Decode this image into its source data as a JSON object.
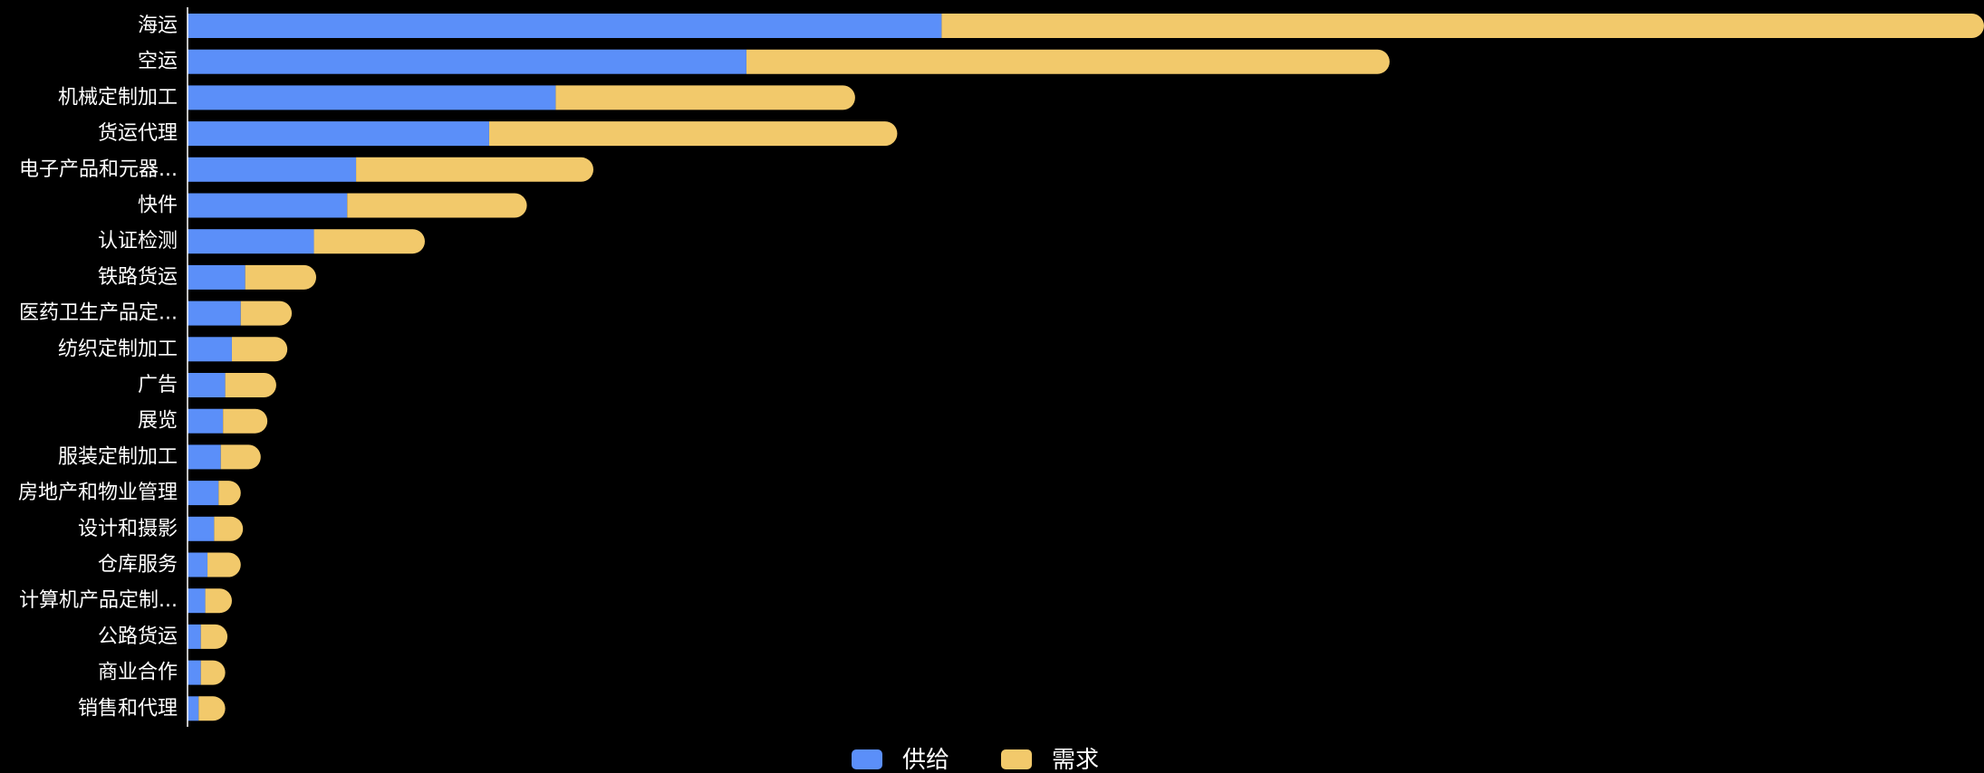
{
  "chart_data": {
    "type": "bar",
    "orientation": "horizontal",
    "stacked": true,
    "categories": [
      "海运",
      "空运",
      "机械定制加工",
      "货运代理",
      "电子产品和元器...",
      "快件",
      "认证检测",
      "铁路货运",
      "医药卫生产品定...",
      "纺织定制加工",
      "广告",
      "展览",
      "服装定制加工",
      "房地产和物业管理",
      "设计和摄影",
      "仓库服务",
      "计算机产品定制...",
      "公路货运",
      "商业合作",
      "销售和代理"
    ],
    "series": [
      {
        "name": "供给",
        "color": "#5b8ff9",
        "values": [
          340,
          252,
          166,
          136,
          76,
          72,
          57,
          26,
          24,
          20,
          17,
          16,
          15,
          14,
          12,
          9,
          8,
          6,
          6,
          5
        ]
      },
      {
        "name": "需求",
        "color": "#f2c96b",
        "values": [
          470,
          290,
          135,
          184,
          107,
          81,
          50,
          32,
          23,
          25,
          23,
          20,
          18,
          10,
          13,
          15,
          12,
          12,
          11,
          12
        ]
      }
    ],
    "xlim": [
      0,
      810
    ],
    "grid": false,
    "x_axis_visible": false,
    "legend_position": "bottom-center"
  }
}
